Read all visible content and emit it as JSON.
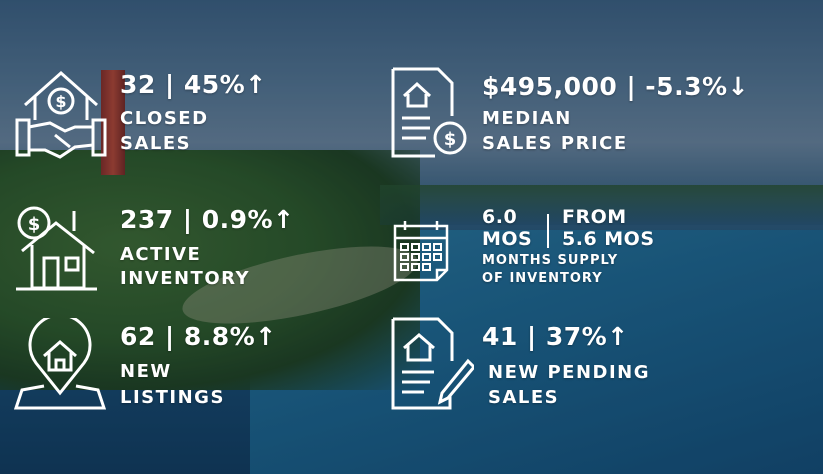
{
  "stats": {
    "closed_sales": {
      "value": "32 | 45%↑",
      "label1": "CLOSED",
      "label2": "SALES",
      "icon": "house-handshake-icon"
    },
    "median_price": {
      "value": "$495,000 | -5.3%↓",
      "label1": "MEDIAN",
      "label2": "SALES PRICE",
      "icon": "house-document-dollar-icon"
    },
    "active_inventory": {
      "value": "237 | 0.9%↑",
      "label1": "ACTIVE",
      "label2": "INVENTORY",
      "icon": "house-dollar-icon"
    },
    "months_supply": {
      "value_line1": "6.0",
      "value_line2": "MOS",
      "from_line1": "FROM",
      "from_line2": "5.6 MOS",
      "label1": "MONTHS SUPPLY",
      "label2": "OF INVENTORY",
      "icon": "calendar-icon"
    },
    "new_listings": {
      "value": "62 | 8.8%↑",
      "label1": "NEW",
      "label2": "LISTINGS",
      "icon": "location-pin-house-icon"
    },
    "pending_sales": {
      "value": "41 | 37%↑",
      "label1": "NEW PENDING",
      "label2": "SALES",
      "icon": "document-pen-icon"
    }
  }
}
